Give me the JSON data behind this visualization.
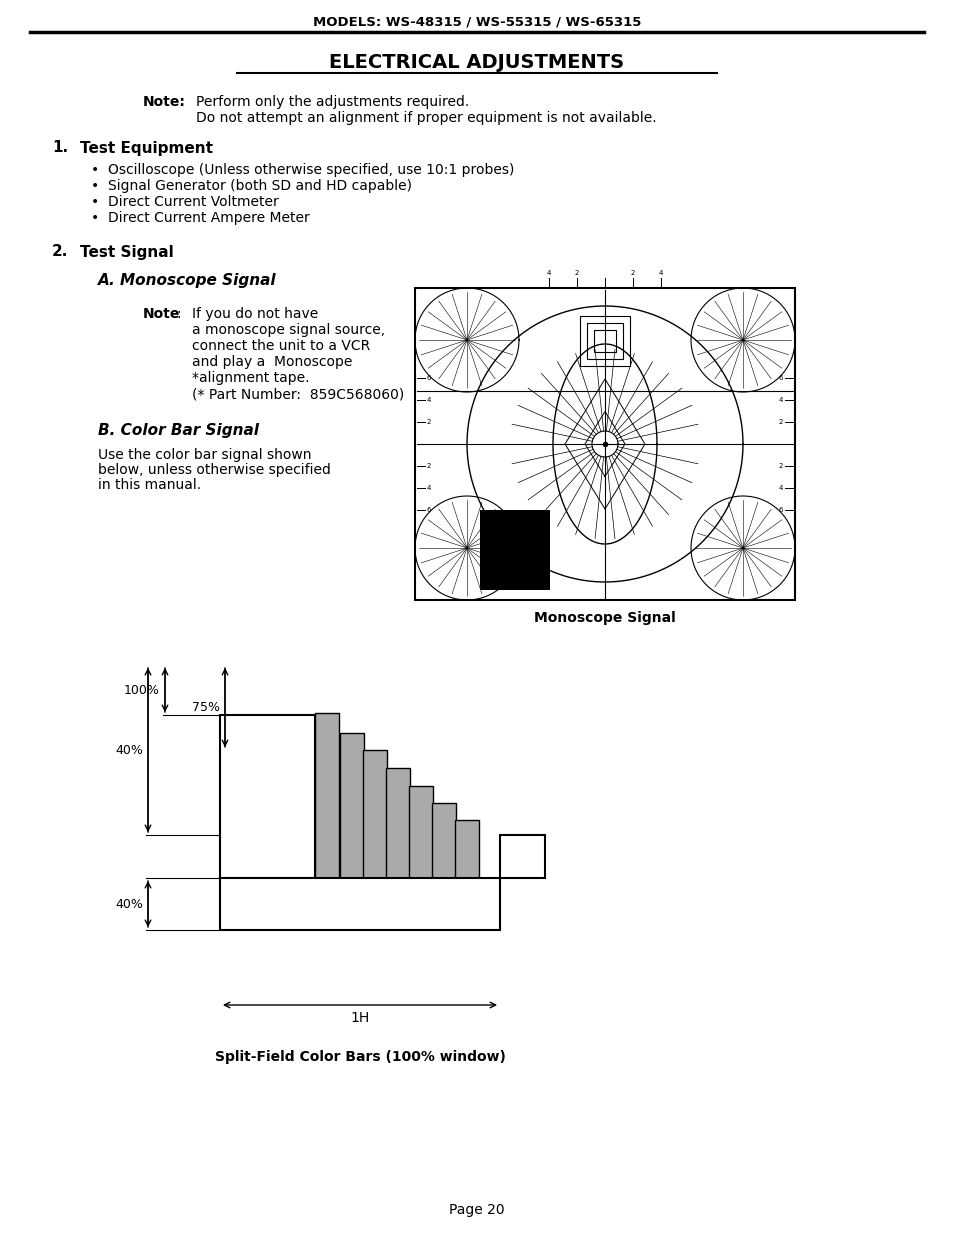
{
  "page_header": "MODELS: WS-48315 / WS-55315 / WS-65315",
  "main_title": "ELECTRICAL ADJUSTMENTS",
  "note_label": "Note:",
  "note_line1": "Perform only the adjustments required.",
  "note_line2": "Do not attempt an alignment if proper equipment is not available.",
  "sec1_num": "1.",
  "sec1_title": "Test Equipment",
  "bullet_items": [
    "Oscilloscope (Unless otherwise specified, use 10:1 probes)",
    "Signal Generator (both SD and HD capable)",
    "Direct Current Voltmeter",
    "Direct Current Ampere Meter"
  ],
  "sec2_num": "2.",
  "sec2_title": "Test Signal",
  "subsec_a_title": "A. Monoscope Signal",
  "note2_bold": "Note",
  "note2_lines": [
    "If you do not have",
    "a monoscope signal source,",
    "connect the unit to a VCR",
    "and play a  Monoscope",
    "*alignment tape.",
    "(* Part Number:  859C568060)"
  ],
  "subsec_b_title": "B. Color Bar Signal",
  "subsec_b_lines": [
    "Use the color bar signal shown",
    "below, unless otherwise specified",
    "in this manual."
  ],
  "mono_caption": "Monoscope Signal",
  "color_bar_caption": "Split-Field Color Bars (100% window)",
  "page_num": "Page 20",
  "bg_color": "#ffffff",
  "text_color": "#000000"
}
